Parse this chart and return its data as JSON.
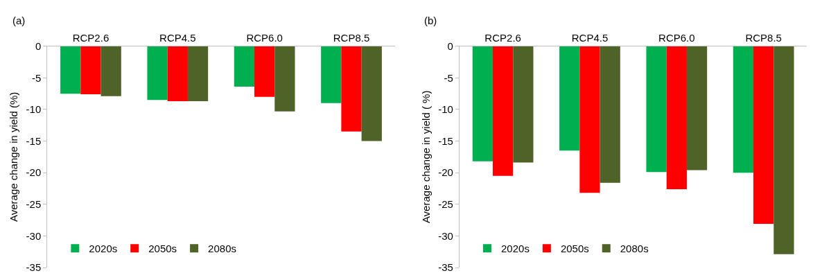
{
  "chart_data": [
    {
      "type": "bar",
      "title": "(a)",
      "ylabel": "Average change in yield (%)",
      "categories": [
        "RCP2.6",
        "RCP4.5",
        "RCP6.0",
        "RCP8.5"
      ],
      "series": [
        {
          "name": "2020s",
          "color": "#00b050",
          "values": [
            -7.5,
            -8.5,
            -6.4,
            -9.0
          ]
        },
        {
          "name": "2050s",
          "color": "#ff0000",
          "values": [
            -7.6,
            -8.7,
            -8.0,
            -13.5
          ]
        },
        {
          "name": "2080s",
          "color": "#4f6228",
          "values": [
            -7.9,
            -8.7,
            -10.3,
            -15.0
          ]
        }
      ],
      "ylim": [
        -35,
        0
      ],
      "yticks": [
        -35,
        -30,
        -25,
        -20,
        -15,
        -10,
        -5,
        0
      ],
      "legend": "bottom left"
    },
    {
      "type": "bar",
      "title": "(b)",
      "ylabel": "Average change in yield ( %)",
      "categories": [
        "RCP2.6",
        "RCP4.5",
        "RCP6.0",
        "RCP8.5"
      ],
      "series": [
        {
          "name": "2020s",
          "color": "#00b050",
          "values": [
            -18.2,
            -16.5,
            -19.9,
            -20.0
          ]
        },
        {
          "name": "2050s",
          "color": "#ff0000",
          "values": [
            -20.5,
            -23.2,
            -22.6,
            -28.1
          ]
        },
        {
          "name": "2080s",
          "color": "#4f6228",
          "values": [
            -18.4,
            -21.6,
            -19.6,
            -32.9
          ]
        }
      ],
      "ylim": [
        -35,
        0
      ],
      "yticks": [
        -35,
        -30,
        -25,
        -20,
        -15,
        -10,
        -5,
        0
      ],
      "legend": "bottom left"
    }
  ]
}
